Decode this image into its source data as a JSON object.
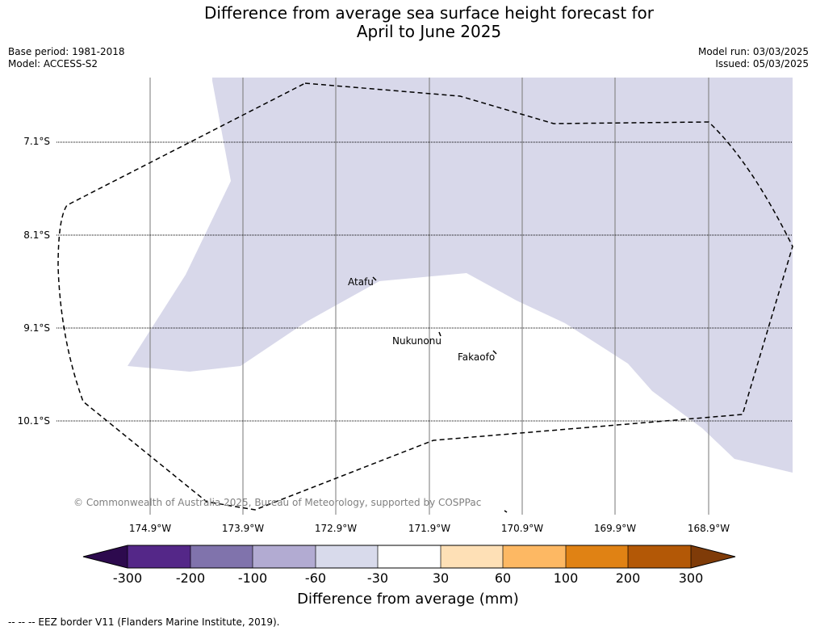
{
  "title": {
    "line1": "Difference from average sea surface height forecast for",
    "line2": "April to June 2025"
  },
  "meta": {
    "base_period": "Base period: 1981-2018",
    "model": "Model: ACCESS-S2",
    "model_run": "Model run: 03/03/2025",
    "issued": "Issued: 05/03/2025"
  },
  "map": {
    "latitude_labels": [
      "7.1°S",
      "8.1°S",
      "9.1°S",
      "10.1°S"
    ],
    "longitude_labels": [
      "174.9°W",
      "173.9°W",
      "172.9°W",
      "171.9°W",
      "170.9°W",
      "169.9°W",
      "168.9°W"
    ],
    "islands": [
      "Atafu",
      "Nukunonu",
      "Fakaofo"
    ],
    "shading_color": "#d8d8ea",
    "copyright": "© Commonwealth of Australia 2025, Bureau of Meteorology, supported by COSPPac"
  },
  "colorbar": {
    "ticks": [
      "-300",
      "-200",
      "-100",
      "-60",
      "-30",
      "30",
      "60",
      "100",
      "200",
      "300"
    ],
    "colors": [
      "#2d0a4e",
      "#542788",
      "#8073ac",
      "#b2abd2",
      "#d8daeb",
      "#ffffff",
      "#fee0b6",
      "#fdb863",
      "#e08214",
      "#b35806",
      "#7f3b08"
    ],
    "title": "Difference from average (mm)"
  },
  "footer": {
    "legend": "--  --  -- EEZ border V11 (Flanders Marine Institute, 2019)."
  }
}
